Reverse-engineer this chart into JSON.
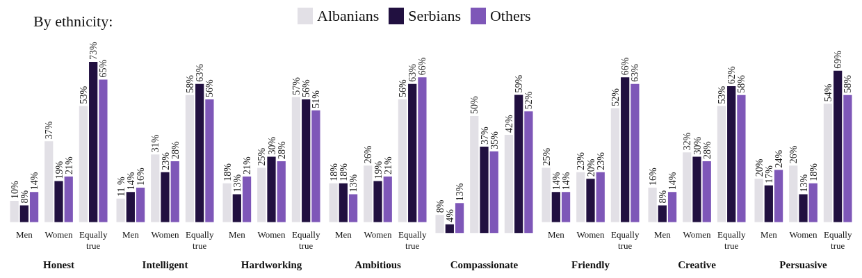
{
  "chart_data": [
    {
      "type": "bar",
      "title": "By ethnicity:",
      "legend": "top",
      "xlabel": "Honest",
      "categories": [
        "Men",
        "Women",
        "Equally true"
      ],
      "series": [
        {
          "name": "Albanians",
          "color": "#e2e0e6",
          "values": [
            10,
            37,
            53
          ],
          "value_labels": [
            "10%",
            "37%",
            "53%"
          ]
        },
        {
          "name": "Serbians",
          "color": "#211040",
          "values": [
            8,
            19,
            73
          ],
          "value_labels": [
            "8%",
            "19%",
            "73%"
          ]
        },
        {
          "name": "Others",
          "color": "#7e57b8",
          "values": [
            14,
            21,
            65
          ],
          "value_labels": [
            "14%",
            "21%",
            "65%"
          ]
        }
      ]
    },
    {
      "type": "bar",
      "xlabel": "Intelligent",
      "categories": [
        "Men",
        "Women",
        "Equally true"
      ],
      "series": [
        {
          "color": "#e2e0e6",
          "values": [
            11,
            31,
            58
          ],
          "value_labels": [
            "11 %",
            "31%",
            "58%"
          ]
        },
        {
          "color": "#211040",
          "values": [
            14,
            23,
            63
          ],
          "value_labels": [
            "14%",
            "23%",
            "63%"
          ]
        },
        {
          "color": "#7e57b8",
          "values": [
            16,
            28,
            56
          ],
          "value_labels": [
            "16%",
            "28%",
            "56%"
          ]
        }
      ]
    },
    {
      "type": "bar",
      "xlabel": "Hardworking",
      "categories": [
        "Men",
        "Women",
        "Equally true"
      ],
      "series": [
        {
          "color": "#e2e0e6",
          "values": [
            18,
            25,
            57
          ],
          "value_labels": [
            "18%",
            "25%",
            "57%"
          ]
        },
        {
          "color": "#211040",
          "values": [
            13,
            30,
            56
          ],
          "value_labels": [
            "13%",
            "30%",
            "56%"
          ]
        },
        {
          "color": "#7e57b8",
          "values": [
            21,
            28,
            51
          ],
          "value_labels": [
            "21%",
            "28%",
            "51%"
          ]
        }
      ]
    },
    {
      "type": "bar",
      "xlabel": "Ambitious",
      "categories": [
        "Men",
        "Women",
        "Equally true"
      ],
      "series": [
        {
          "color": "#e2e0e6",
          "values": [
            18,
            26,
            56
          ],
          "value_labels": [
            "18%",
            "26%",
            "56%"
          ]
        },
        {
          "color": "#211040",
          "values": [
            18,
            19,
            63
          ],
          "value_labels": [
            "18%",
            "19%",
            "63%"
          ]
        },
        {
          "color": "#7e57b8",
          "values": [
            13,
            21,
            66
          ],
          "value_labels": [
            "13%",
            "21%",
            "66%"
          ]
        }
      ]
    },
    {
      "type": "bar",
      "xlabel": "Compassionate",
      "categories": [
        null,
        null,
        null
      ],
      "series": [
        {
          "color": "#e2e0e6",
          "values": [
            8,
            50,
            42
          ],
          "value_labels": [
            "8%",
            "50%",
            "42%"
          ]
        },
        {
          "color": "#211040",
          "values": [
            4,
            37,
            59
          ],
          "value_labels": [
            "4%",
            "37%",
            "59%"
          ]
        },
        {
          "color": "#7e57b8",
          "values": [
            13,
            35,
            52
          ],
          "value_labels": [
            "13%",
            "35%",
            "52%"
          ]
        }
      ]
    },
    {
      "type": "bar",
      "xlabel": "Friendly",
      "categories": [
        "Men",
        "Women",
        "Equally true"
      ],
      "series": [
        {
          "color": "#e2e0e6",
          "values": [
            25,
            23,
            52
          ],
          "value_labels": [
            "25%",
            "23%",
            "52%"
          ]
        },
        {
          "color": "#211040",
          "values": [
            14,
            20,
            66
          ],
          "value_labels": [
            "14%",
            "20%",
            "66%"
          ]
        },
        {
          "color": "#7e57b8",
          "values": [
            14,
            23,
            63
          ],
          "value_labels": [
            "14%",
            "23%",
            "63%"
          ]
        }
      ]
    },
    {
      "type": "bar",
      "xlabel": "Creative",
      "categories": [
        "Men",
        "Women",
        "Equally true"
      ],
      "series": [
        {
          "color": "#e2e0e6",
          "values": [
            16,
            32,
            53
          ],
          "value_labels": [
            "16%",
            "32%",
            "53%"
          ]
        },
        {
          "color": "#211040",
          "values": [
            8,
            30,
            62
          ],
          "value_labels": [
            "8%",
            "30%",
            "62%"
          ]
        },
        {
          "color": "#7e57b8",
          "values": [
            14,
            28,
            58
          ],
          "value_labels": [
            "14%",
            "28%",
            "58%"
          ]
        }
      ]
    },
    {
      "type": "bar",
      "xlabel": "Persuasive",
      "categories": [
        "Men",
        "Women",
        "Equally true"
      ],
      "series": [
        {
          "color": "#e2e0e6",
          "values": [
            20,
            26,
            54
          ],
          "value_labels": [
            "20%",
            "26%",
            "54%"
          ]
        },
        {
          "color": "#211040",
          "values": [
            17,
            13,
            69
          ],
          "value_labels": [
            "17%",
            "13%",
            "69%"
          ]
        },
        {
          "color": "#7e57b8",
          "values": [
            24,
            18,
            58
          ],
          "value_labels": [
            "24%",
            "18%",
            "58%"
          ]
        }
      ]
    }
  ]
}
